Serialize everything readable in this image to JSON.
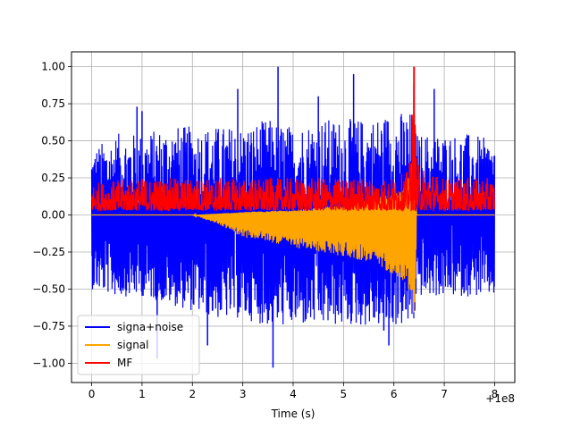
{
  "chart_data": {
    "type": "line",
    "title": "",
    "xlabel": "Time (s)",
    "ylabel": "",
    "x_offset_label": "+1e8",
    "xlim": [
      -0.4,
      8.4
    ],
    "ylim": [
      -1.13,
      1.1
    ],
    "x_ticks": [
      0,
      1,
      2,
      3,
      4,
      5,
      6,
      7,
      8
    ],
    "x_tick_labels": [
      "0",
      "1",
      "2",
      "3",
      "4",
      "5",
      "6",
      "7",
      "8"
    ],
    "y_ticks": [
      -1.0,
      -0.75,
      -0.5,
      -0.25,
      0.0,
      0.25,
      0.5,
      0.75,
      1.0
    ],
    "y_tick_labels": [
      "−1.00",
      "−0.75",
      "−0.50",
      "−0.25",
      "0.00",
      "0.25",
      "0.50",
      "0.75",
      "1.00"
    ],
    "grid": true,
    "legend_position": "lower-left",
    "series": [
      {
        "name": "signa+noise",
        "color": "#0000ff",
        "x": [
          0,
          0.5,
          1,
          1.5,
          2,
          2.5,
          3,
          3.5,
          4,
          4.5,
          5,
          5.5,
          6,
          6.3,
          6.4,
          6.45,
          6.5,
          7,
          7.5,
          8
        ],
        "y_upper": [
          0.45,
          0.55,
          0.55,
          0.6,
          0.6,
          0.6,
          0.6,
          0.65,
          0.6,
          0.65,
          0.65,
          0.65,
          0.7,
          0.7,
          0.7,
          0.55,
          0.55,
          0.55,
          0.55,
          0.5
        ],
        "y_lower": [
          -0.5,
          -0.55,
          -0.55,
          -0.6,
          -0.65,
          -0.7,
          -0.7,
          -0.75,
          -0.75,
          -0.75,
          -0.75,
          -0.75,
          -0.75,
          -0.75,
          -0.75,
          -0.55,
          -0.55,
          -0.55,
          -0.55,
          -0.55
        ],
        "spikes": [
          [
            1,
            0.7
          ],
          [
            2.9,
            0.85
          ],
          [
            3.7,
            1.0
          ],
          [
            3.6,
            -1.03
          ],
          [
            5.2,
            0.95
          ],
          [
            6.8,
            0.85
          ],
          [
            1.3,
            -0.97
          ],
          [
            2.3,
            -0.88
          ],
          [
            5.9,
            -0.88
          ],
          [
            4.5,
            0.8
          ],
          [
            0.9,
            0.73
          ],
          [
            5.8,
            -0.78
          ]
        ]
      },
      {
        "name": "signal",
        "color": "#ffa500",
        "x": [
          0,
          1,
          2,
          2.5,
          3,
          3.5,
          4,
          4.5,
          5,
          5.5,
          6,
          6.2,
          6.35,
          6.42,
          6.45,
          6.5,
          8
        ],
        "y_upper": [
          0,
          0,
          0,
          0.01,
          0.02,
          0.03,
          0.03,
          0.05,
          0.07,
          0.1,
          0.15,
          0.2,
          0.35,
          0.45,
          0,
          0,
          0
        ],
        "y_lower": [
          0,
          0,
          0,
          -0.06,
          -0.15,
          -0.18,
          -0.22,
          -0.25,
          -0.28,
          -0.32,
          -0.4,
          -0.45,
          -0.55,
          -0.75,
          0,
          0,
          0
        ]
      },
      {
        "name": "MF",
        "color": "#ff0000",
        "x": [
          0,
          1,
          2,
          3,
          4,
          5,
          6,
          6.3,
          6.4,
          6.45,
          7,
          8
        ],
        "y_upper": [
          0.22,
          0.25,
          0.25,
          0.25,
          0.25,
          0.25,
          0.25,
          0.3,
          1.0,
          0.35,
          0.25,
          0.25
        ],
        "y_lower": [
          0.03,
          0.03,
          0.03,
          0.03,
          0.03,
          0.03,
          0.03,
          0.03,
          0.03,
          0.03,
          0.03,
          0.03
        ]
      }
    ]
  }
}
